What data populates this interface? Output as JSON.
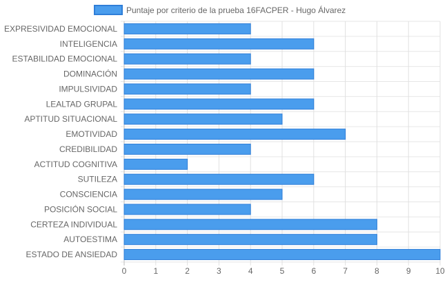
{
  "chart_data": {
    "type": "bar",
    "orientation": "horizontal",
    "categories": [
      "EXPRESIVIDAD EMOCIONAL",
      "INTELIGENCIA",
      "ESTABILIDAD EMOCIONAL",
      "DOMINACIÓN",
      "IMPULSIVIDAD",
      "LEALTAD GRUPAL",
      "APTITUD SITUACIONAL",
      "EMOTIVIDAD",
      "CREDIBILIDAD",
      "ACTITUD COGNITIVA",
      "SUTILEZA",
      "CONSCIENCIA",
      "POSICIÓN SOCIAL",
      "CERTEZA INDIVIDUAL",
      "AUTOESTIMA",
      "ESTADO DE ANSIEDAD"
    ],
    "series": [
      {
        "name": "Puntaje por criterio de la prueba 16FACPER - Hugo Álvarez",
        "values": [
          4,
          6,
          4,
          6,
          4,
          6,
          5,
          7,
          4,
          2,
          6,
          5,
          4,
          8,
          8,
          10
        ],
        "color": "#4a9ded",
        "border_color": "#2f7ed8"
      }
    ],
    "xlim": [
      0,
      10
    ],
    "x_ticks": [
      "0",
      "1",
      "2",
      "3",
      "4",
      "5",
      "6",
      "7",
      "8",
      "9",
      "10"
    ],
    "grid": true,
    "legend_position": "top-center"
  }
}
